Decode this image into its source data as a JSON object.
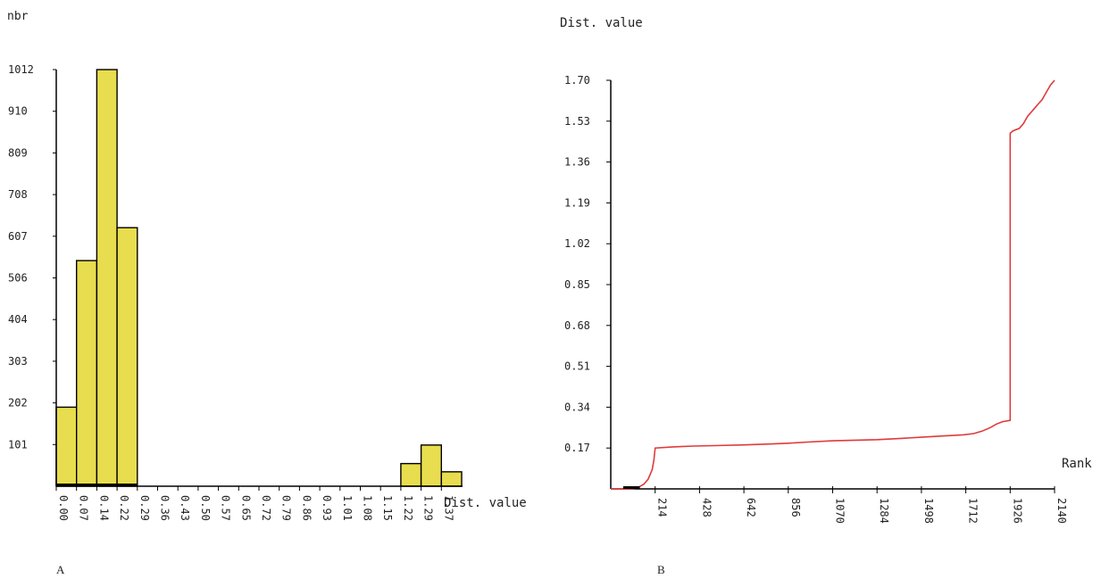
{
  "chart_data": [
    {
      "type": "bar",
      "panel_label": "A",
      "ylabel": "nbr",
      "xlabel": "Dist. value",
      "y_ticks": [
        "101",
        "202",
        "303",
        "404",
        "506",
        "607",
        "708",
        "809",
        "910",
        "1012"
      ],
      "x_ticks": [
        "0.00",
        "0.07",
        "0.14",
        "0.22",
        "0.29",
        "0.36",
        "0.43",
        "0.50",
        "0.57",
        "0.65",
        "0.72",
        "0.79",
        "0.86",
        "0.93",
        "1.01",
        "1.08",
        "1.15",
        "1.22",
        "1.29",
        "1.37"
      ],
      "ylim": [
        0,
        1012
      ],
      "bin_edges": [
        0.0,
        0.07,
        0.14,
        0.22,
        0.29,
        0.36,
        0.43,
        0.5,
        0.57,
        0.65,
        0.72,
        0.79,
        0.86,
        0.93,
        1.01,
        1.08,
        1.15,
        1.22,
        1.29,
        1.37,
        1.44
      ],
      "values": [
        192,
        548,
        1012,
        628,
        0,
        0,
        0,
        0,
        0,
        0,
        0,
        0,
        0,
        0,
        0,
        0,
        0,
        55,
        100,
        35
      ],
      "bar_color": "#e8dd4e",
      "grid": false
    },
    {
      "type": "line",
      "panel_label": "B",
      "ylabel": "Dist. value",
      "xlabel": "Rank",
      "y_ticks": [
        "0.17",
        "0.34",
        "0.51",
        "0.68",
        "0.85",
        "1.02",
        "1.19",
        "1.36",
        "1.53",
        "1.70"
      ],
      "x_ticks": [
        "214",
        "428",
        "642",
        "856",
        "1070",
        "1284",
        "1498",
        "1712",
        "1926",
        "2140"
      ],
      "xlim": [
        0,
        2140
      ],
      "ylim": [
        0,
        1.7
      ],
      "series": [
        {
          "color": "#e03a3a",
          "x": [
            0,
            60,
            100,
            130,
            140,
            160,
            180,
            190,
            200,
            208,
            214,
            300,
            400,
            500,
            642,
            780,
            856,
            950,
            1070,
            1200,
            1284,
            1400,
            1498,
            1600,
            1700,
            1750,
            1790,
            1830,
            1860,
            1890,
            1926,
            1926,
            1940,
            1970,
            1990,
            2010,
            2040,
            2060,
            2080,
            2100,
            2120,
            2140
          ],
          "y": [
            0,
            0,
            0,
            0.005,
            0.01,
            0.02,
            0.04,
            0.06,
            0.08,
            0.12,
            0.17,
            0.175,
            0.178,
            0.18,
            0.183,
            0.187,
            0.19,
            0.195,
            0.2,
            0.203,
            0.205,
            0.21,
            0.215,
            0.22,
            0.225,
            0.23,
            0.24,
            0.255,
            0.27,
            0.28,
            0.285,
            1.48,
            1.49,
            1.5,
            1.52,
            1.55,
            1.58,
            1.6,
            1.62,
            1.65,
            1.68,
            1.7
          ]
        }
      ],
      "grid": false
    }
  ]
}
